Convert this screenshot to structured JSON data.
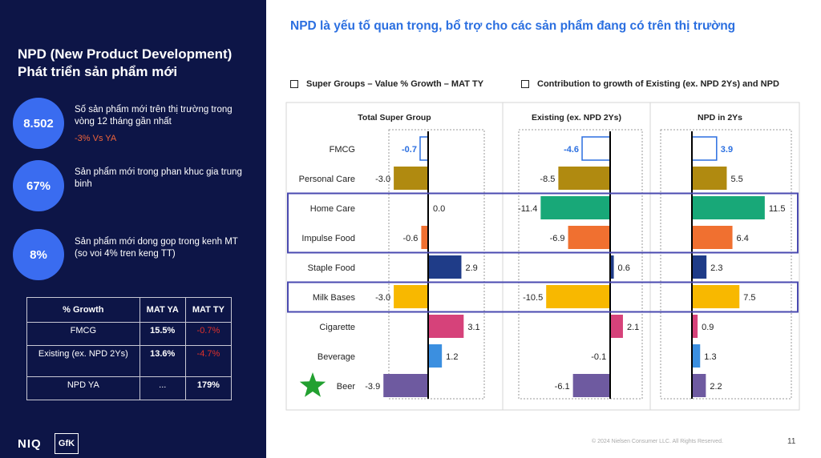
{
  "left_panel": {
    "title_line1": "NPD (New Product Development)",
    "title_line2": "Phát triển sản phẩm mới",
    "stats": [
      {
        "value": "8.502",
        "text": "Số sản phẩm mới trên thị trường trong vòng 12 tháng gần nhất",
        "sub": "-3% Vs YA"
      },
      {
        "value": "67%",
        "text": "Sản phẩm mới trong phan khuc gia trung binh"
      },
      {
        "value": "8%",
        "text": "Sản phẩm mới  dong gop trong kenh MT (so voi 4% tren keng TT)"
      }
    ],
    "table": {
      "headers": [
        "% Growth",
        "MAT YA",
        "MAT TY"
      ],
      "rows": [
        [
          "FMCG",
          "15.5%",
          "-0.7%"
        ],
        [
          "Existing (ex. NPD 2Ys)",
          "13.6%",
          "-4.7%"
        ],
        [
          "NPD YA",
          "...",
          "179%"
        ]
      ]
    },
    "logo_niq": "NIQ",
    "logo_gfk": "GfK"
  },
  "main_title": "NPD là yếu tố quan trọng, bổ trợ cho các sản phẩm đang có trên thị trường",
  "subheadings": [
    "Super Groups – Value % Growth – MAT TY",
    "Contribution to growth of Existing (ex. NPD 2Ys) and NPD"
  ],
  "footer": "© 2024 Nielsen Consumer LLC. All Rights Reserved.",
  "page_number": "11",
  "colors": {
    "FMCG": "#ffffff",
    "Personal Care": "#b08a10",
    "Home Care": "#18a878",
    "Impulse Food": "#f07030",
    "Staple Food": "#1f3c88",
    "Milk Bases": "#f8b800",
    "Cigarette": "#d6427a",
    "Beverage": "#3b8fe0",
    "Beer": "#6e5aa0",
    "highlight": "#4a4ab0",
    "blue_label": "#2b6fe0",
    "star": "#22a030"
  },
  "chart_data": [
    {
      "type": "bar",
      "title": "Total Super Group",
      "categories": [
        "FMCG",
        "Personal Care",
        "Home Care",
        "Impulse Food",
        "Staple Food",
        "Milk Bases",
        "Cigarette",
        "Beverage",
        "Beer"
      ],
      "values": [
        -0.7,
        -3.0,
        0.0,
        -0.6,
        2.9,
        -3.0,
        3.1,
        1.2,
        -3.9
      ],
      "labels": [
        "-0.7",
        "-3.0",
        "0.0",
        "-0.6",
        "2.9",
        "-3.0",
        "3.1",
        "1.2",
        "-3.9"
      ]
    },
    {
      "type": "bar",
      "title": "Existing (ex. NPD 2Ys)",
      "categories": [
        "FMCG",
        "Personal Care",
        "Home Care",
        "Impulse Food",
        "Staple Food",
        "Milk Bases",
        "Cigarette",
        "Beverage",
        "Beer"
      ],
      "values": [
        -4.6,
        -8.5,
        -11.4,
        -6.9,
        0.6,
        -10.5,
        2.1,
        -0.1,
        -6.1
      ],
      "labels": [
        "-4.6",
        "-8.5",
        "-11.4",
        "-6.9",
        "0.6",
        "-10.5",
        "2.1",
        "-0.1",
        "-6.1"
      ]
    },
    {
      "type": "bar",
      "title": "NPD in 2Ys",
      "categories": [
        "FMCG",
        "Personal Care",
        "Home Care",
        "Impulse Food",
        "Staple Food",
        "Milk Bases",
        "Cigarette",
        "Beverage",
        "Beer"
      ],
      "values": [
        3.9,
        5.5,
        11.5,
        6.4,
        2.3,
        7.5,
        0.9,
        1.3,
        2.2
      ],
      "labels": [
        "3.9",
        "5.5",
        "11.5",
        "6.4",
        "2.3",
        "7.5",
        "0.9",
        "1.3",
        "2.2"
      ]
    }
  ]
}
